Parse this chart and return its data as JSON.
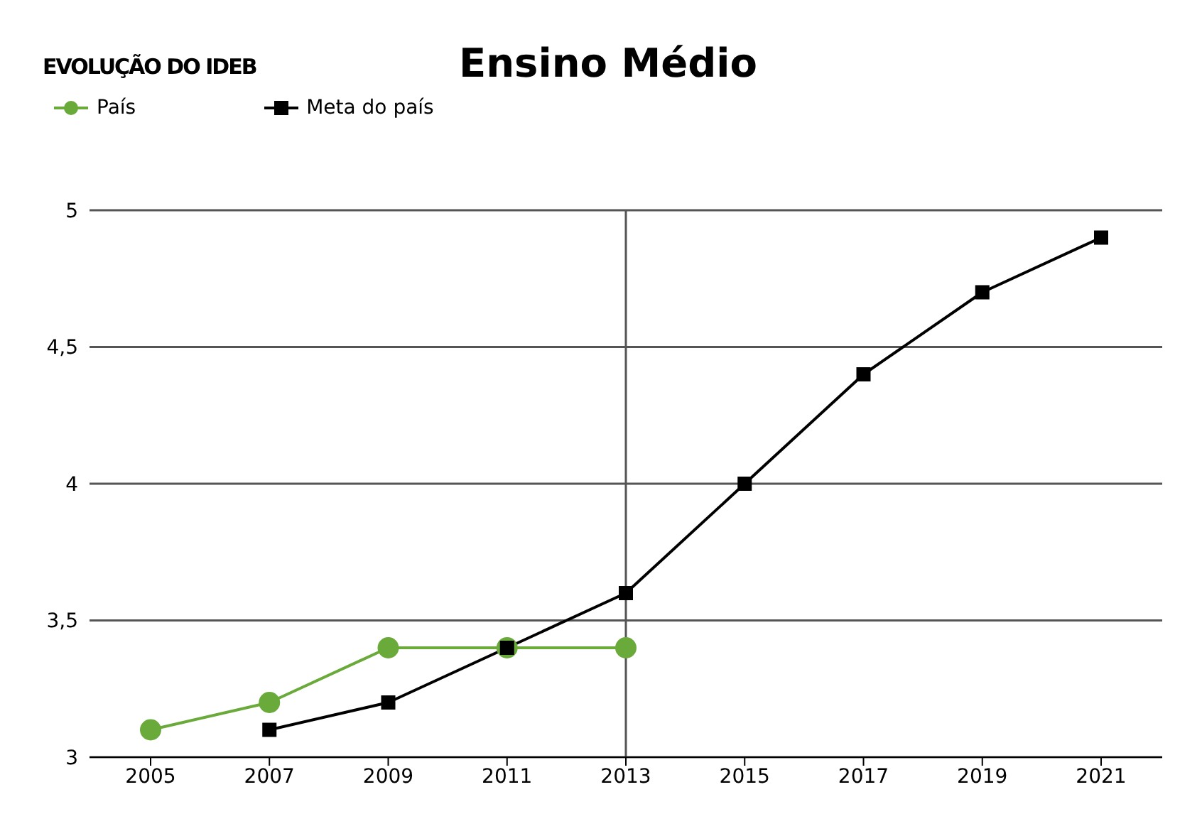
{
  "chart_data": {
    "type": "line",
    "title": "Ensino Médio",
    "subtitle": "EVOLUÇÃO DO IDEB",
    "categories": [
      "2005",
      "2007",
      "2009",
      "2011",
      "2013",
      "2015",
      "2017",
      "2019",
      "2021"
    ],
    "series": [
      {
        "name": "País",
        "color": "#6aaa3a",
        "marker": "circle",
        "values": [
          3.1,
          3.2,
          3.4,
          3.4,
          3.4,
          null,
          null,
          null,
          null
        ]
      },
      {
        "name": "Meta do país",
        "color": "#000000",
        "marker": "square",
        "values": [
          null,
          3.1,
          3.2,
          3.4,
          3.6,
          4.0,
          4.4,
          4.7,
          4.9
        ]
      }
    ],
    "ylim": [
      3,
      5
    ],
    "yticks": [
      {
        "value": 3,
        "label": "3"
      },
      {
        "value": 3.5,
        "label": "3,5"
      },
      {
        "value": 4,
        "label": "4"
      },
      {
        "value": 4.5,
        "label": "4,5"
      },
      {
        "value": 5,
        "label": "5"
      }
    ],
    "grid": "y",
    "legend": "top left",
    "line_style": "solid",
    "ref_lines": [
      {
        "axis": "x",
        "value": "2013",
        "color": "#555555"
      }
    ]
  }
}
